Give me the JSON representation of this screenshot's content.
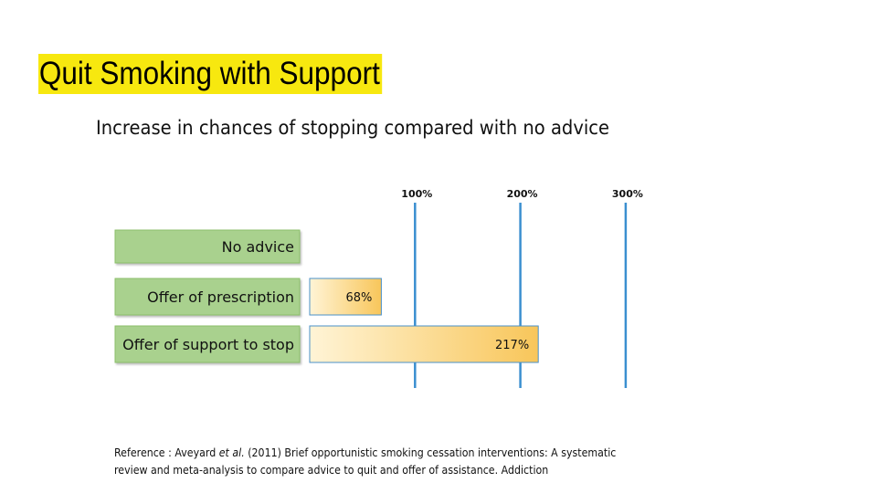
{
  "slide": {
    "title": "Quit Smoking with Support",
    "title_highlight_color": "#f7e80f"
  },
  "chart_data": {
    "type": "bar",
    "title": "Increase in chances of stopping compared with no advice",
    "categories": [
      "No advice",
      "Offer of prescription",
      "Offer of support to stop"
    ],
    "values": [
      0,
      68,
      217
    ],
    "value_labels": [
      "",
      "68%",
      "217%"
    ],
    "x_ticks": [
      100,
      200,
      300
    ],
    "x_tick_labels": [
      "100%",
      "200%",
      "300%"
    ],
    "xlim": [
      0,
      300
    ],
    "grid": "vertical lines at ticks",
    "colors": {
      "category_box": "#a9d18e",
      "category_border": "#8cbf6b",
      "bar_fill_start": "#fff4d6",
      "bar_fill_end": "#f8c65a",
      "bar_border": "#4a90c8",
      "gridline": "#3b8fd0"
    }
  },
  "reference": {
    "prefix": "Reference : Aveyard ",
    "et_al": "et al.",
    "line1_rest": " (2011) Brief opportunistic smoking cessation interventions: A systematic",
    "line2": "review and meta-analysis to compare advice to quit and offer of assistance. Addiction"
  }
}
